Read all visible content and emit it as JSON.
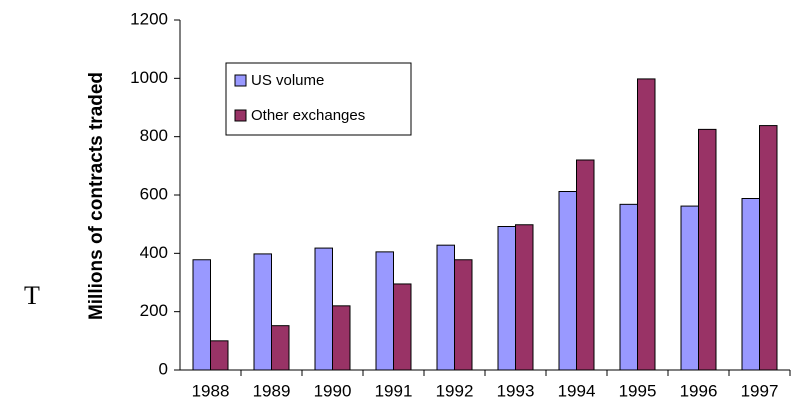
{
  "annotation": "T",
  "chart_data": {
    "type": "bar",
    "ylabel": "Millions of contracts traded",
    "categories": [
      "1988",
      "1989",
      "1990",
      "1991",
      "1992",
      "1993",
      "1994",
      "1995",
      "1996",
      "1997"
    ],
    "series": [
      {
        "name": "US volume",
        "color": "#9999ff",
        "values": [
          378,
          398,
          418,
          405,
          428,
          492,
          612,
          568,
          562,
          588
        ]
      },
      {
        "name": "Other exchanges",
        "color": "#993366",
        "values": [
          100,
          152,
          220,
          295,
          378,
          498,
          720,
          998,
          825,
          838
        ]
      }
    ],
    "ylim": [
      0,
      1200
    ],
    "yticks": [
      0,
      200,
      400,
      600,
      800,
      1000,
      1200
    ],
    "grid": false,
    "legend": "upper left"
  }
}
